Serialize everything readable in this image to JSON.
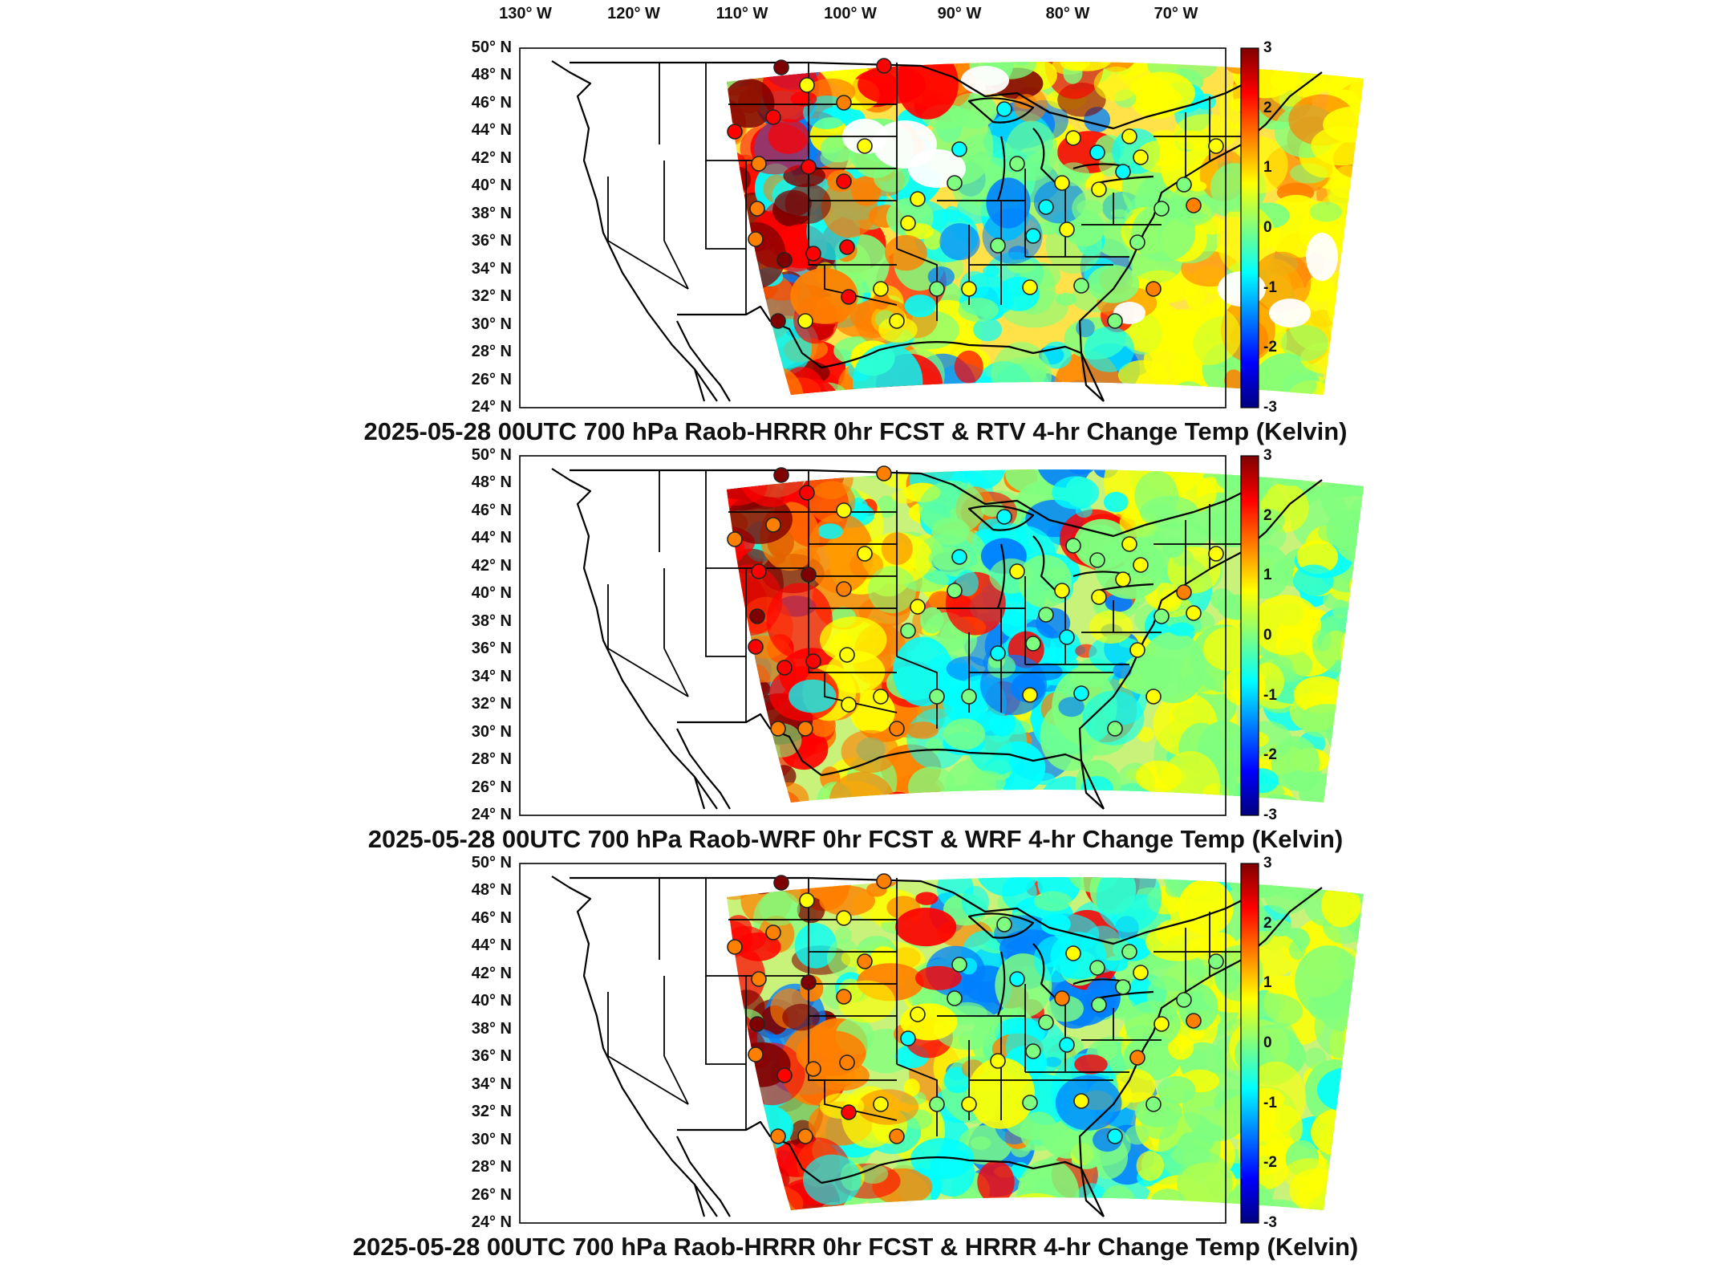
{
  "lon_labels": [
    "130° W",
    "120° W",
    "110° W",
    "100° W",
    "90° W",
    "80° W",
    "70° W"
  ],
  "lat_labels": [
    "50° N",
    "48° N",
    "46° N",
    "44° N",
    "42° N",
    "40° N",
    "38° N",
    "36° N",
    "34° N",
    "32° N",
    "30° N",
    "28° N",
    "26° N",
    "24° N"
  ],
  "colorbar": {
    "ticks": [
      "3",
      "2",
      "1",
      "0",
      "-1",
      "-2",
      "-3"
    ],
    "range": [
      -3,
      3
    ],
    "colors": [
      "#00007f",
      "#0000ff",
      "#007fff",
      "#00ffff",
      "#7fff7f",
      "#ffff00",
      "#ff7f00",
      "#ff0000",
      "#7f0000"
    ]
  },
  "panels": [
    {
      "title": "2025-05-28 00UTC 700 hPa Raob-HRRR 0hr FCST & RTV 4-hr Change Temp (Kelvin)"
    },
    {
      "title": "2025-05-28 00UTC 700 hPa Raob-WRF 0hr FCST & WRF 4-hr Change Temp (Kelvin)"
    },
    {
      "title": "2025-05-28 00UTC 700 hPa Raob-HRRR 0hr FCST & HRRR 4-hr Change Temp (Kelvin)"
    }
  ]
}
